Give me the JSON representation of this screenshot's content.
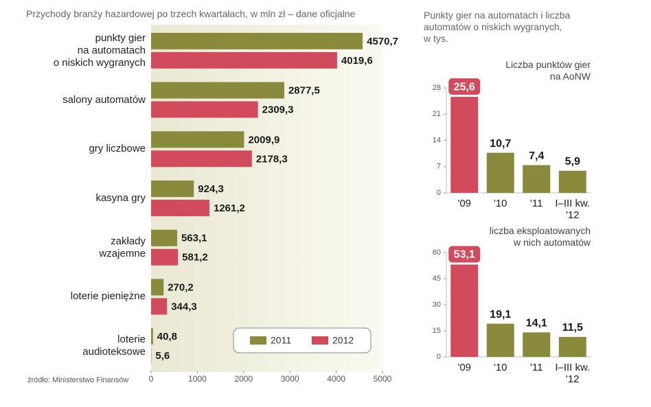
{
  "chart_data": [
    {
      "type": "hbar",
      "title": "Przychody branży hazardowej po trzech kwartałach, w mln zł – dane oficjalne",
      "source": "źródło: Ministerstwo Finansów",
      "categories": [
        "punkty gier\nna automatach\no niskich wygranych",
        "salony automatów",
        "gry liczbowe",
        "kasyna gry",
        "zakłady\nwzajemne",
        "loterie pieniężne",
        "loterie\naudioteksowe"
      ],
      "series": [
        {
          "name": "2011",
          "color": "#8a8a3c",
          "values": [
            4570.7,
            2877.5,
            2009.9,
            924.3,
            563.1,
            270.2,
            40.8
          ],
          "value_labels": [
            "4570,7",
            "2877,5",
            "2009,9",
            "924,3",
            "563,1",
            "270,2",
            "40,8"
          ]
        },
        {
          "name": "2012",
          "color": "#d24b5c",
          "values": [
            4019.6,
            2309.3,
            2178.3,
            1261.2,
            581.2,
            344.3,
            5.6
          ],
          "value_labels": [
            "4019,6",
            "2309,3",
            "2178,3",
            "1261,2",
            "581,2",
            "344,3",
            "5,6"
          ]
        }
      ],
      "xlim": [
        0,
        5000
      ],
      "xticks": [
        0,
        1000,
        2000,
        3000,
        4000,
        5000
      ],
      "grid": false,
      "legend": "bottom-right"
    },
    {
      "type": "bar",
      "title": "Punkty gier na automatach i liczba\nautomatów o niskich wygranych,\nw tys.",
      "subtitle": "Liczba punktów gier\nna AoNW",
      "categories": [
        "'09",
        "'10",
        "'11",
        "I–III kw.\n'12"
      ],
      "values": [
        25.6,
        10.7,
        7.4,
        5.9
      ],
      "value_labels": [
        "25,6",
        "10,7",
        "7,4",
        "5,9"
      ],
      "colors": [
        "#d24b5c",
        "#8a8a3c",
        "#8a8a3c",
        "#8a8a3c"
      ],
      "ylim": [
        0,
        28
      ],
      "yticks": [
        0,
        7,
        14,
        21,
        28
      ],
      "grid": false
    },
    {
      "type": "bar",
      "subtitle": "liczba eksploatowanych\nw nich automatów",
      "categories": [
        "'09",
        "'10",
        "'11",
        "I–III kw.\n'12"
      ],
      "values": [
        53.1,
        19.1,
        14.1,
        11.5
      ],
      "value_labels": [
        "53,1",
        "19,1",
        "14,1",
        "11,5"
      ],
      "colors": [
        "#d24b5c",
        "#8a8a3c",
        "#8a8a3c",
        "#8a8a3c"
      ],
      "ylim": [
        0,
        60
      ],
      "yticks": [
        0,
        15,
        30,
        45,
        60
      ],
      "grid": false
    }
  ]
}
